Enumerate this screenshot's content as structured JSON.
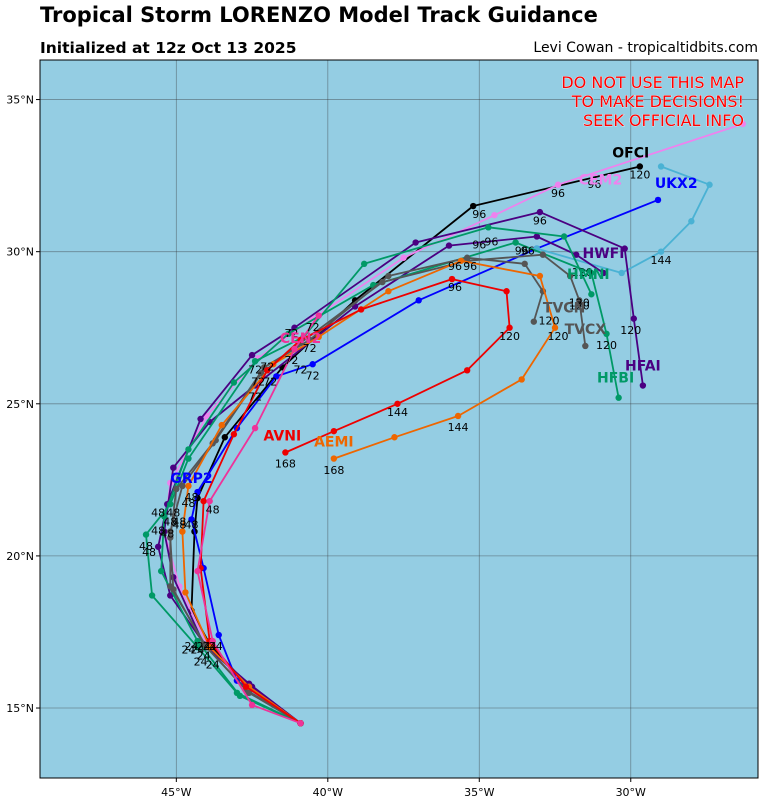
{
  "header": {
    "title": "Tropical Storm LORENZO Model Track Guidance",
    "subtitle": "Initialized at 12z Oct 13 2025",
    "credit": "Levi Cowan - tropicaltidbits.com"
  },
  "warning": {
    "lines": [
      "DO NOT USE THIS MAP",
      "TO MAKE DECISIONS!",
      "SEEK OFFICIAL INFO"
    ],
    "color": "#ff0000"
  },
  "map": {
    "ocean_color": "#94cde3",
    "lon_range": [
      -49.5,
      -25.8
    ],
    "lat_range": [
      12.7,
      36.3
    ],
    "lon_ticks": [
      {
        "value": -45,
        "label": "45°W"
      },
      {
        "value": -40,
        "label": "40°W"
      },
      {
        "value": -35,
        "label": "35°W"
      },
      {
        "value": -30,
        "label": "30°W"
      }
    ],
    "lat_ticks": [
      {
        "value": 15,
        "label": "15°N"
      },
      {
        "value": 20,
        "label": "20°N"
      },
      {
        "value": 25,
        "label": "25°N"
      },
      {
        "value": 30,
        "label": "30°N"
      },
      {
        "value": 35,
        "label": "35°N"
      }
    ]
  },
  "tracks": [
    {
      "name": "OFCI",
      "color": "#000000",
      "label": {
        "text": "OFCI",
        "lon": -30,
        "lat": 33.1
      },
      "points": [
        [
          -40.9,
          14.5
        ],
        [
          -42.6,
          15.7
        ],
        [
          -43.9,
          17.1
        ],
        [
          -44.5,
          18.2
        ],
        [
          -44.4,
          20.8
        ],
        [
          -44.3,
          21.9
        ],
        [
          -43.4,
          23.9
        ],
        [
          -41.5,
          26.2
        ],
        [
          -39.1,
          28.4
        ],
        [
          -35.2,
          31.5
        ],
        [
          -29.7,
          32.8
        ]
      ],
      "hours": [
        {
          "text": "96",
          "lon": -35,
          "lat": 31.1
        },
        {
          "text": "120",
          "lon": -29.7,
          "lat": 32.4
        }
      ]
    },
    {
      "name": "CEM2",
      "color": "#ee82ee",
      "label": {
        "text": "CEM2",
        "lon": -31,
        "lat": 32.2
      },
      "points": [
        [
          -40.9,
          14.5
        ],
        [
          -42.7,
          15.8
        ],
        [
          -44,
          17.1
        ],
        [
          -44.9,
          19
        ],
        [
          -45.4,
          20.8
        ],
        [
          -45.2,
          22.4
        ],
        [
          -44,
          24.6
        ],
        [
          -42.3,
          26.5
        ],
        [
          -40.5,
          27.8
        ],
        [
          -37.5,
          29.8
        ],
        [
          -34.5,
          31.2
        ],
        [
          -32.4,
          32.2
        ],
        [
          -26.3,
          34.2
        ]
      ],
      "hours": [
        {
          "text": "96",
          "lon": -32.4,
          "lat": 31.8
        },
        {
          "text": "96",
          "lon": -31.2,
          "lat": 32.1
        }
      ]
    },
    {
      "name": "UKX2",
      "color": "#0000ff",
      "label": {
        "text": "UKX2",
        "lon": -28.5,
        "lat": 32.1
      },
      "points": [
        [
          -40.9,
          14.5
        ],
        [
          -43,
          15.9
        ],
        [
          -43.6,
          17.4
        ],
        [
          -44.1,
          19.6
        ],
        [
          -44.5,
          21.2
        ],
        [
          -44.3,
          22.1
        ],
        [
          -43,
          24.2
        ],
        [
          -41.7,
          25.9
        ],
        [
          -40.5,
          26.3
        ],
        [
          -37,
          28.4
        ],
        [
          -33.1,
          30.1
        ],
        [
          -29.1,
          31.7
        ]
      ],
      "hours": [
        {
          "text": "72",
          "lon": -40.5,
          "lat": 25.8
        },
        {
          "text": "96",
          "lon": -33.4,
          "lat": 29.9
        }
      ]
    },
    {
      "name": "GRP2",
      "color": "#0000ff",
      "label": {
        "text": "GRP2",
        "lon": -44.5,
        "lat": 22.4
      },
      "points": [],
      "hours": []
    },
    {
      "name": "UKX2-ext",
      "color": "#4ab2d4",
      "label": null,
      "points": [
        [
          -33.1,
          30.1
        ],
        [
          -30.3,
          29.3
        ],
        [
          -29,
          30
        ],
        [
          -28,
          31
        ],
        [
          -27.4,
          32.2
        ],
        [
          -29,
          32.8
        ]
      ],
      "hours": [
        {
          "text": "144",
          "lon": -29,
          "lat": 29.6
        }
      ]
    },
    {
      "name": "HWFI",
      "color": "#4b0082",
      "label": {
        "text": "HWFI",
        "lon": -30.9,
        "lat": 29.8
      },
      "points": [
        [
          -40.9,
          14.5
        ],
        [
          -42.5,
          15.7
        ],
        [
          -44,
          17
        ],
        [
          -45.2,
          18.7
        ],
        [
          -45.6,
          20.3
        ],
        [
          -45.3,
          21.7
        ],
        [
          -44.2,
          24.5
        ],
        [
          -42.5,
          26.6
        ],
        [
          -41.1,
          27.5
        ],
        [
          -37.1,
          30.3
        ],
        [
          -33,
          31.3
        ],
        [
          -30.2,
          30.1
        ],
        [
          -29.9,
          27.8
        ],
        [
          -29.6,
          25.6
        ]
      ],
      "hours": [
        {
          "text": "96",
          "lon": -33,
          "lat": 30.9
        },
        {
          "text": "120",
          "lon": -30,
          "lat": 27.3
        }
      ]
    },
    {
      "name": "HFAI",
      "color": "#4b0082",
      "label": {
        "text": "HFAI",
        "lon": -29.6,
        "lat": 26.1
      },
      "points": [
        [
          -40.9,
          14.5
        ],
        [
          -42.6,
          15.8
        ],
        [
          -44.1,
          17.1
        ],
        [
          -45.1,
          19.3
        ],
        [
          -45.4,
          20.8
        ],
        [
          -45.1,
          22.9
        ],
        [
          -43.9,
          24.4
        ],
        [
          -42.4,
          25.6
        ],
        [
          -39.1,
          28.2
        ],
        [
          -36,
          30.2
        ],
        [
          -33.1,
          30.5
        ],
        [
          -31.8,
          29.9
        ],
        [
          -30.9,
          29.3
        ]
      ],
      "hours": [
        {
          "text": "96",
          "lon": -34.6,
          "lat": 30.2
        },
        {
          "text": "120",
          "lon": -31.6,
          "lat": 29.2
        }
      ]
    },
    {
      "name": "HMNI",
      "color": "#009966",
      "label": {
        "text": "HMNI",
        "lon": -31.4,
        "lat": 29.1
      },
      "points": [
        [
          -40.9,
          14.5
        ],
        [
          -43,
          15.5
        ],
        [
          -44.3,
          17
        ],
        [
          -45.8,
          18.7
        ],
        [
          -46,
          20.7
        ],
        [
          -45.2,
          21.7
        ],
        [
          -44.6,
          23.2
        ],
        [
          -42.4,
          26.4
        ],
        [
          -40.8,
          27.2
        ],
        [
          -38.8,
          29.6
        ],
        [
          -34.7,
          30.8
        ],
        [
          -32.2,
          30.5
        ],
        [
          -31.3,
          28.6
        ]
      ],
      "hours": [
        {
          "text": "96",
          "lon": -33.6,
          "lat": 29.9
        },
        {
          "text": "120",
          "lon": -31.7,
          "lat": 28.2
        }
      ]
    },
    {
      "name": "HFBI",
      "color": "#009966",
      "label": {
        "text": "HFBI",
        "lon": -30.5,
        "lat": 25.7
      },
      "points": [
        [
          -40.9,
          14.5
        ],
        [
          -42.9,
          15.4
        ],
        [
          -44.3,
          17.2
        ],
        [
          -45.5,
          19.5
        ],
        [
          -45.4,
          21.3
        ],
        [
          -44.6,
          23.5
        ],
        [
          -43.1,
          25.7
        ],
        [
          -41.3,
          27.3
        ],
        [
          -38.5,
          28.9
        ],
        [
          -33.8,
          30.3
        ],
        [
          -31.3,
          29.3
        ],
        [
          -30.8,
          27.3
        ],
        [
          -30.4,
          25.2
        ]
      ],
      "hours": [
        {
          "text": "96",
          "lon": -35,
          "lat": 30.1
        },
        {
          "text": "120",
          "lon": -30.8,
          "lat": 26.8
        }
      ]
    },
    {
      "name": "TVCN",
      "color": "#555555",
      "label": {
        "text": "TVCN",
        "lon": -32.2,
        "lat": 28
      },
      "points": [
        [
          -40.9,
          14.5
        ],
        [
          -42.7,
          15.6
        ],
        [
          -44.1,
          17.1
        ],
        [
          -45.1,
          18.9
        ],
        [
          -45.2,
          20.6
        ],
        [
          -45,
          22.2
        ],
        [
          -43.8,
          23.7
        ],
        [
          -42.1,
          26.2
        ],
        [
          -40.6,
          27.1
        ],
        [
          -38,
          29.2
        ],
        [
          -35.4,
          29.8
        ],
        [
          -33.5,
          29.6
        ],
        [
          -32.9,
          28.7
        ],
        [
          -33.2,
          27.7
        ]
      ],
      "hours": [
        {
          "text": "96",
          "lon": -35.3,
          "lat": 29.4
        },
        {
          "text": "120",
          "lon": -32.7,
          "lat": 27.6
        }
      ]
    },
    {
      "name": "TVCX",
      "color": "#555555",
      "label": {
        "text": "TVCX",
        "lon": -31.5,
        "lat": 27.3
      },
      "points": [
        [
          -40.9,
          14.5
        ],
        [
          -42.6,
          15.5
        ],
        [
          -44,
          17
        ],
        [
          -45.2,
          19
        ],
        [
          -45.2,
          20.8
        ],
        [
          -44.8,
          22.3
        ],
        [
          -43.7,
          23.8
        ],
        [
          -42.2,
          26
        ],
        [
          -40.9,
          27
        ],
        [
          -38.2,
          29
        ],
        [
          -35.4,
          29.7
        ],
        [
          -32.9,
          29.9
        ],
        [
          -32,
          29.2
        ],
        [
          -31.7,
          28.4
        ],
        [
          -31.5,
          26.9
        ]
      ],
      "hours": [
        {
          "text": "120",
          "lon": -31.7,
          "lat": 28.1
        }
      ]
    },
    {
      "name": "AEMI",
      "color": "#ee6600",
      "label": {
        "text": "AEMI",
        "lon": -39.8,
        "lat": 23.6
      },
      "points": [
        [
          -40.9,
          14.5
        ],
        [
          -42.6,
          15.7
        ],
        [
          -43.9,
          17
        ],
        [
          -44.7,
          18.8
        ],
        [
          -44.8,
          20.8
        ],
        [
          -44.6,
          22.3
        ],
        [
          -43.5,
          24.3
        ],
        [
          -41.8,
          26.3
        ],
        [
          -40.3,
          27.2
        ],
        [
          -38,
          28.7
        ],
        [
          -35.6,
          29.7
        ],
        [
          -33,
          29.2
        ],
        [
          -32.5,
          27.5
        ],
        [
          -33.6,
          25.8
        ],
        [
          -35.7,
          24.6
        ],
        [
          -37.8,
          23.9
        ],
        [
          -39.8,
          23.2
        ]
      ],
      "hours": [
        {
          "text": "96",
          "lon": -35.8,
          "lat": 29.4
        },
        {
          "text": "120",
          "lon": -32.4,
          "lat": 27.1
        },
        {
          "text": "144",
          "lon": -35.7,
          "lat": 24.1
        },
        {
          "text": "168",
          "lon": -39.8,
          "lat": 22.7
        }
      ]
    },
    {
      "name": "AVNI",
      "color": "#ee0000",
      "label": {
        "text": "AVNI",
        "lon": -41.5,
        "lat": 23.8
      },
      "points": [
        [
          -40.9,
          14.5
        ],
        [
          -42.7,
          15.7
        ],
        [
          -43.9,
          17.2
        ],
        [
          -44.2,
          19.6
        ],
        [
          -44.1,
          21.8
        ],
        [
          -43.1,
          24
        ],
        [
          -42,
          26.1
        ],
        [
          -40.9,
          27.1
        ],
        [
          -38.9,
          28.1
        ],
        [
          -35.9,
          29.1
        ],
        [
          -34.1,
          28.7
        ],
        [
          -34,
          27.5
        ],
        [
          -35.4,
          26.1
        ],
        [
          -37.7,
          25
        ],
        [
          -39.8,
          24.1
        ],
        [
          -41.4,
          23.4
        ]
      ],
      "hours": [
        {
          "text": "96",
          "lon": -35.8,
          "lat": 28.7
        },
        {
          "text": "120",
          "lon": -34,
          "lat": 27.1
        },
        {
          "text": "144",
          "lon": -37.7,
          "lat": 24.6
        },
        {
          "text": "168",
          "lon": -41.4,
          "lat": 22.9
        }
      ]
    },
    {
      "name": "CEN2",
      "color": "#ee3399",
      "label": {
        "text": "CEN2",
        "lon": -40.9,
        "lat": 27.0
      },
      "points": [
        [
          -40.9,
          14.5
        ],
        [
          -42.5,
          15.1
        ],
        [
          -43.8,
          17.2
        ],
        [
          -44.3,
          19.5
        ],
        [
          -43.9,
          21.8
        ],
        [
          -42.4,
          24.2
        ],
        [
          -41.1,
          26.8
        ],
        [
          -40.3,
          27.9
        ]
      ],
      "hours": []
    }
  ],
  "hour_labels_cluster": [
    {
      "text": "72",
      "lon": -41.2,
      "lat": 27.2
    },
    {
      "text": "72",
      "lon": -40.5,
      "lat": 27.4
    },
    {
      "text": "72",
      "lon": -40.6,
      "lat": 26.7
    },
    {
      "text": "72",
      "lon": -41.2,
      "lat": 26.3
    },
    {
      "text": "72",
      "lon": -40.9,
      "lat": 26.0
    },
    {
      "text": "72",
      "lon": -42.4,
      "lat": 26.0
    },
    {
      "text": "72",
      "lon": -42.0,
      "lat": 26.1
    },
    {
      "text": "72",
      "lon": -42.3,
      "lat": 25.6
    },
    {
      "text": "72",
      "lon": -41.9,
      "lat": 25.6
    },
    {
      "text": "72",
      "lon": -42.4,
      "lat": 25.1
    },
    {
      "text": "48",
      "lon": -44.6,
      "lat": 21.6
    },
    {
      "text": "48",
      "lon": -43.8,
      "lat": 21.4
    },
    {
      "text": "48",
      "lon": -45.6,
      "lat": 21.3
    },
    {
      "text": "48",
      "lon": -45.1,
      "lat": 21.3
    },
    {
      "text": "48",
      "lon": -44.9,
      "lat": 20.9
    },
    {
      "text": "48",
      "lon": -45.2,
      "lat": 21.0
    },
    {
      "text": "48",
      "lon": -44.9,
      "lat": 21.0
    },
    {
      "text": "48",
      "lon": -44.5,
      "lat": 20.9
    },
    {
      "text": "48",
      "lon": -44.5,
      "lat": 21.8
    },
    {
      "text": "48",
      "lon": -45.6,
      "lat": 20.7
    },
    {
      "text": "48",
      "lon": -45.3,
      "lat": 20.6
    },
    {
      "text": "48",
      "lon": -46.0,
      "lat": 20.2
    },
    {
      "text": "48",
      "lon": -45.9,
      "lat": 20.0
    },
    {
      "text": "24",
      "lon": -44.6,
      "lat": 16.8
    },
    {
      "text": "24",
      "lon": -44.3,
      "lat": 16.8
    },
    {
      "text": "24",
      "lon": -44.1,
      "lat": 16.9
    },
    {
      "text": "24",
      "lon": -43.9,
      "lat": 16.9
    },
    {
      "text": "24",
      "lon": -44.5,
      "lat": 16.9
    },
    {
      "text": "24",
      "lon": -44.1,
      "lat": 16.6
    },
    {
      "text": "24",
      "lon": -43.7,
      "lat": 16.9
    },
    {
      "text": "24",
      "lon": -44.2,
      "lat": 16.4
    },
    {
      "text": "24",
      "lon": -43.8,
      "lat": 16.3
    }
  ]
}
